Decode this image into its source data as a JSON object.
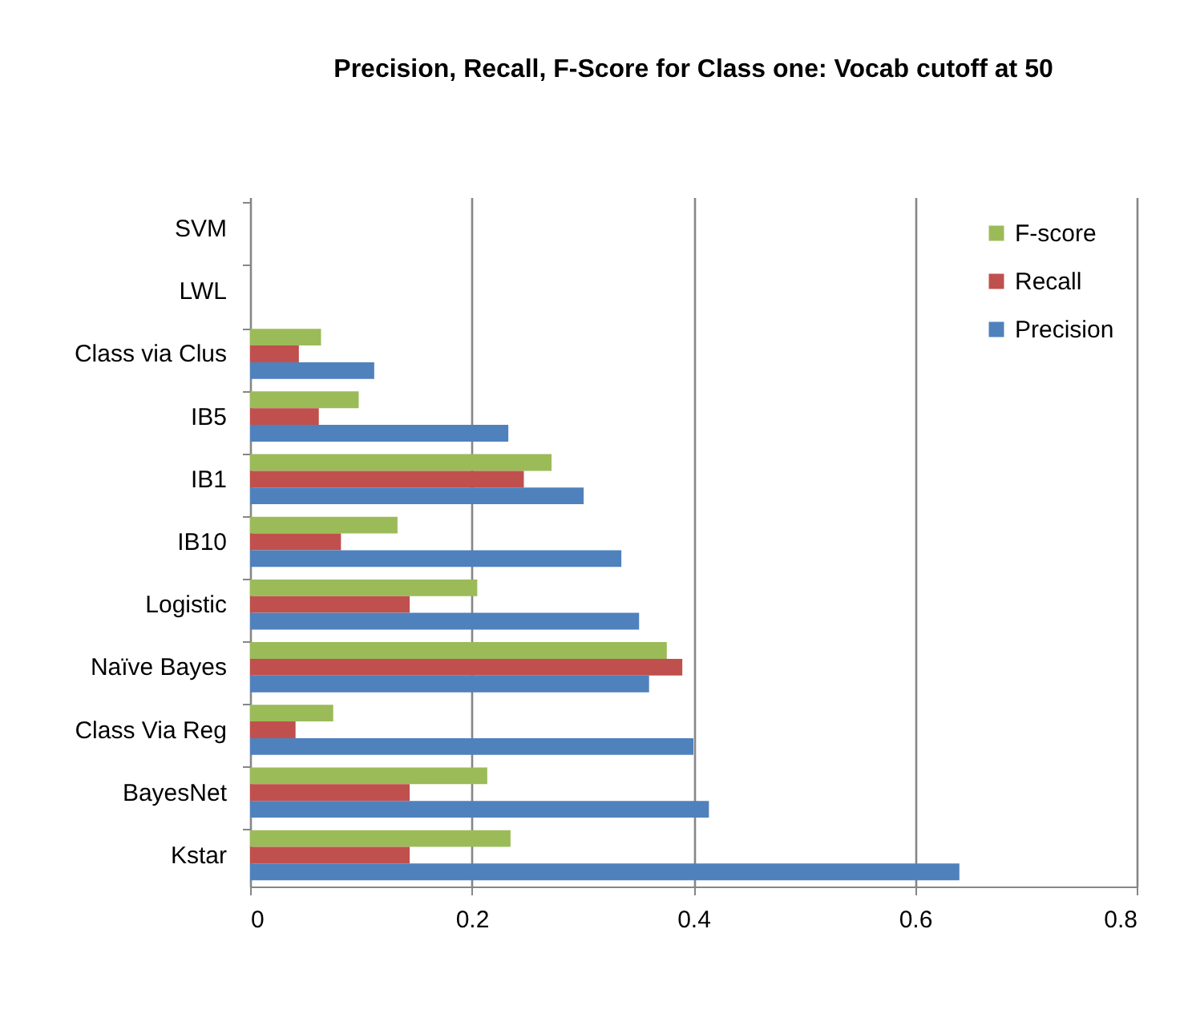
{
  "chart_data": {
    "type": "bar",
    "orientation": "horizontal",
    "title": "Precision, Recall, F-Score for Class one:  Vocab cutoff at 50",
    "categories": [
      "SVM",
      "LWL",
      "Class via Clus",
      "IB5",
      "IB1",
      "IB10",
      "Logistic",
      "Naïve Bayes",
      "Class Via Reg",
      "BayesNet",
      "Kstar"
    ],
    "series": [
      {
        "name": "F-score",
        "color": "#9bbb59",
        "values": [
          0,
          0,
          0.064,
          0.098,
          0.272,
          0.133,
          0.205,
          0.376,
          0.075,
          0.214,
          0.235
        ]
      },
      {
        "name": "Recall",
        "color": "#c0504d",
        "values": [
          0,
          0,
          0.044,
          0.062,
          0.247,
          0.082,
          0.144,
          0.39,
          0.041,
          0.144,
          0.144
        ]
      },
      {
        "name": "Precision",
        "color": "#4f81bd",
        "values": [
          0,
          0,
          0.112,
          0.233,
          0.301,
          0.335,
          0.351,
          0.36,
          0.4,
          0.414,
          0.64
        ]
      }
    ],
    "xlim": [
      0,
      0.8
    ],
    "xticks": [
      0,
      0.2,
      0.4,
      0.6,
      0.8
    ],
    "grid": "x",
    "legend": "right"
  }
}
